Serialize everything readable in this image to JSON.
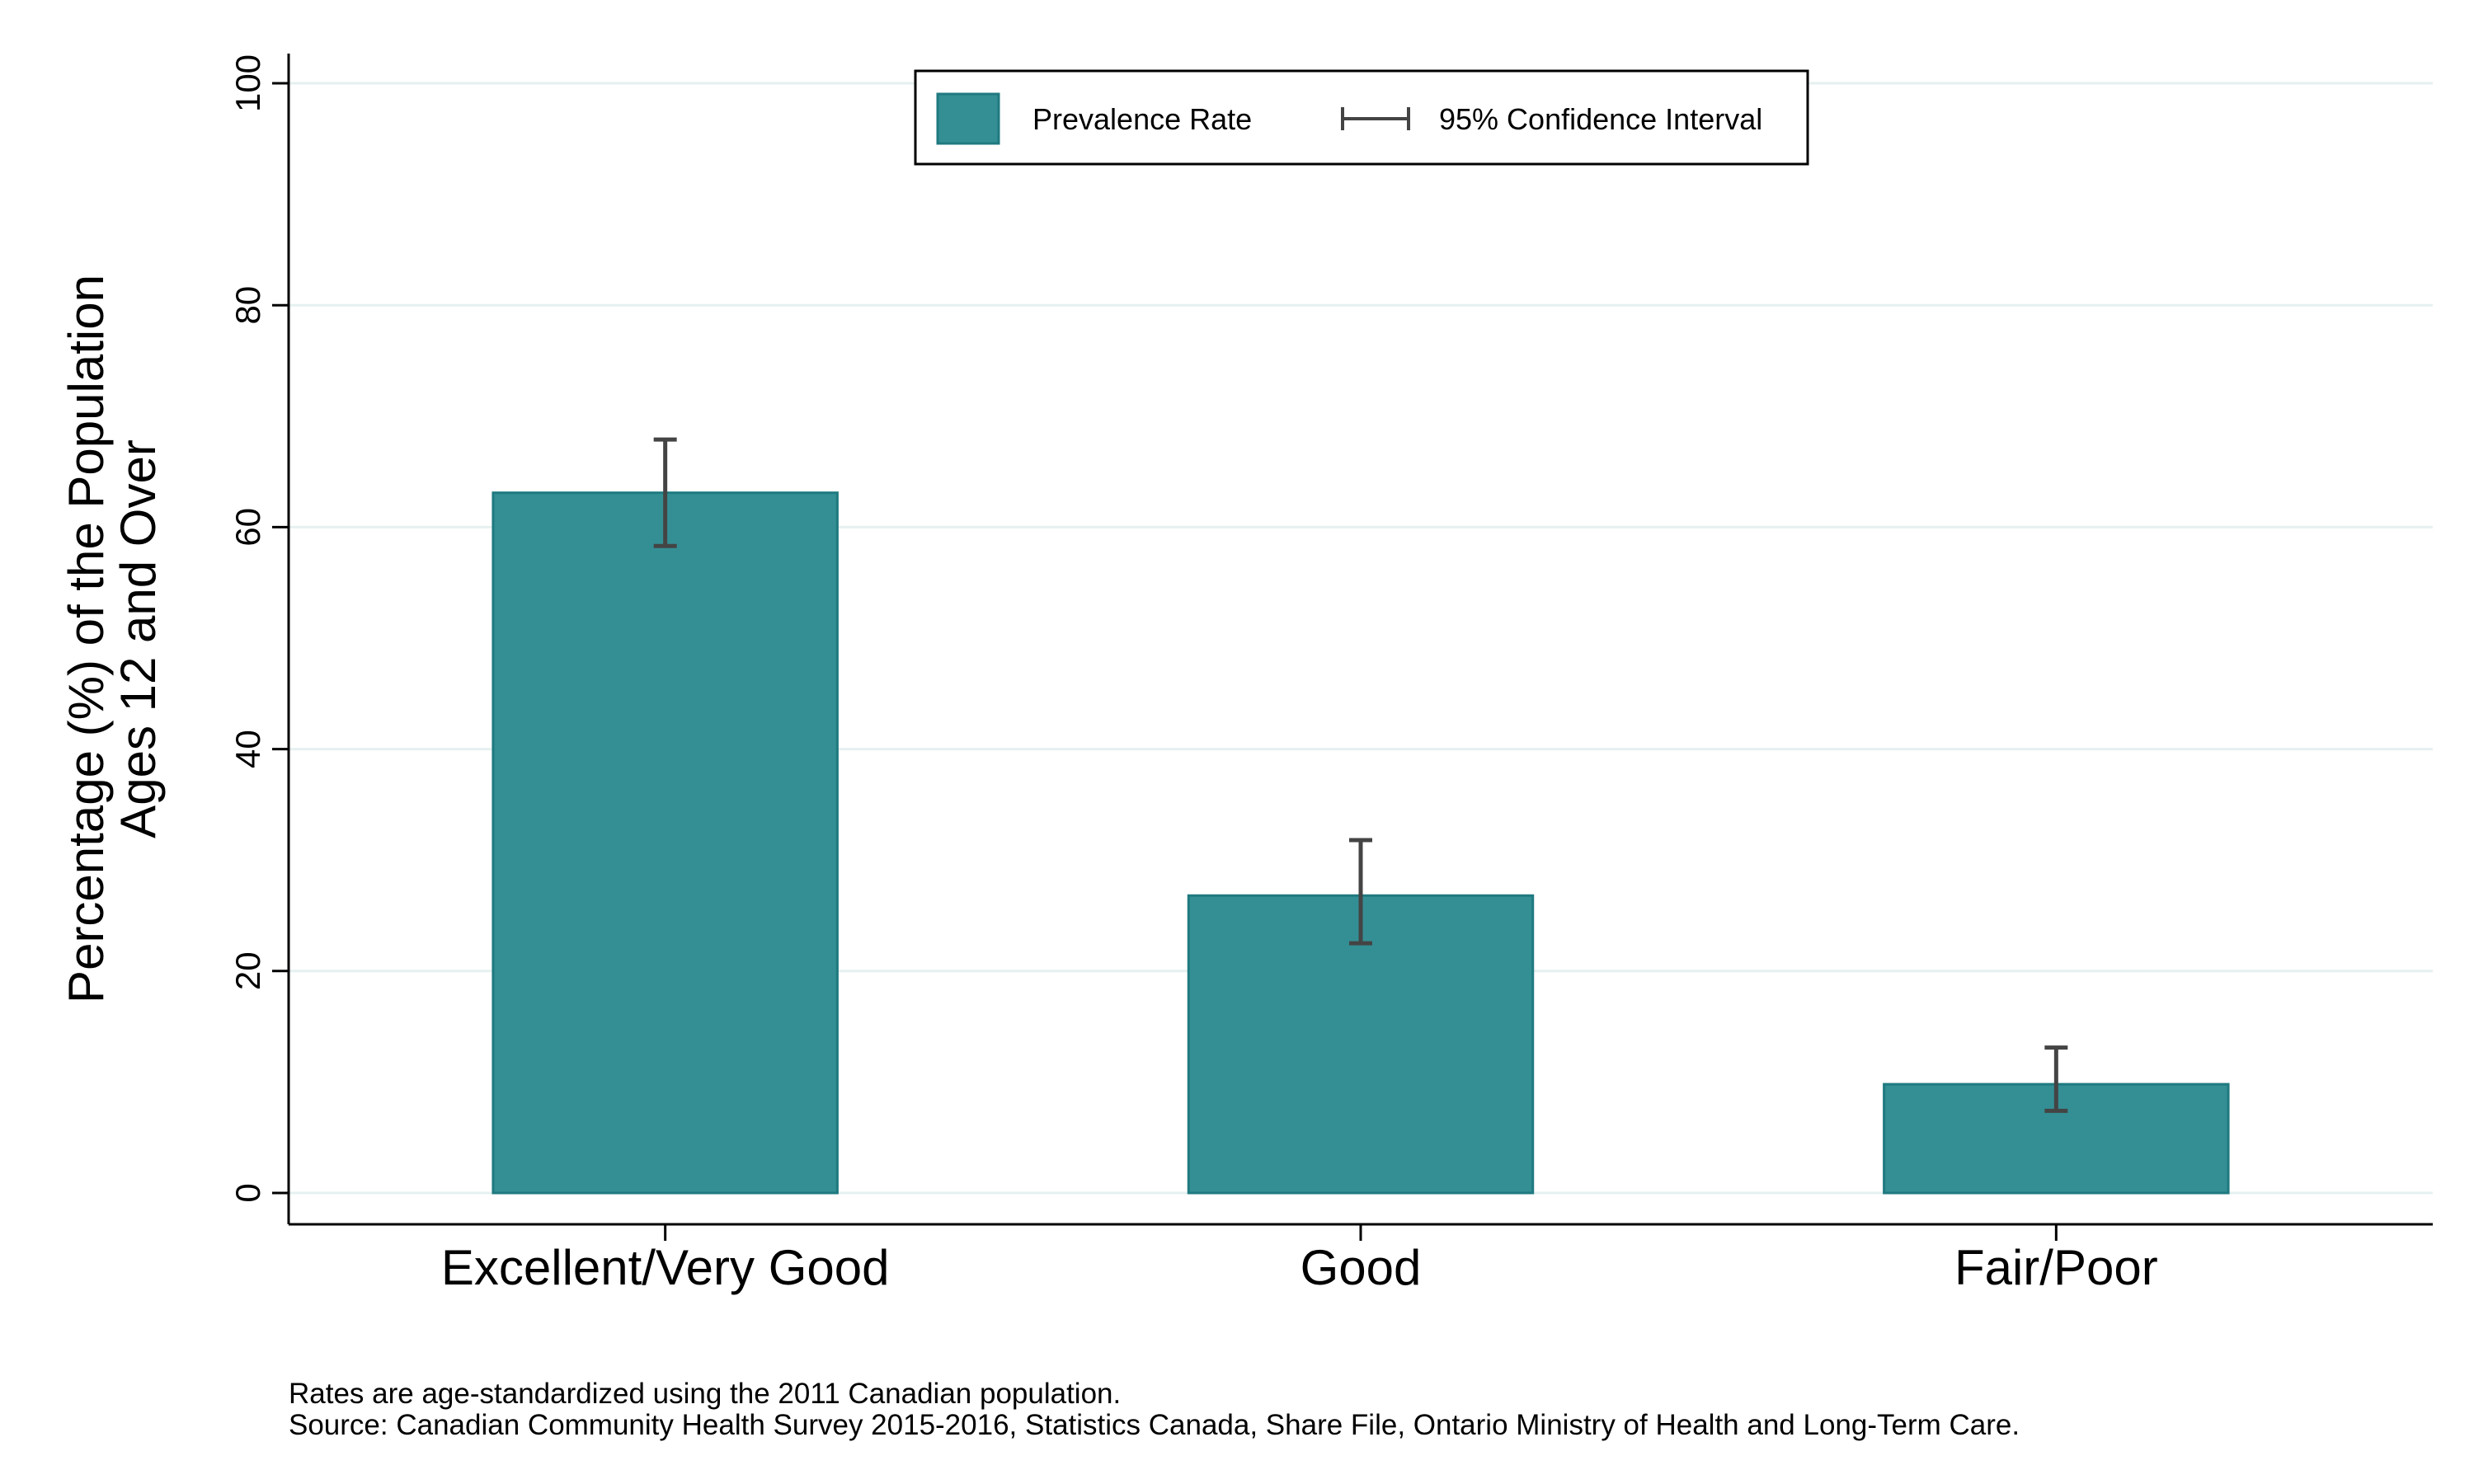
{
  "chart_data": {
    "type": "bar",
    "categories": [
      "Excellent/Very Good",
      "Good",
      "Fair/Poor"
    ],
    "series": [
      {
        "name": "Prevalence Rate",
        "values": [
          63.1,
          26.8,
          9.8
        ],
        "ci_lower": [
          58.3,
          22.5,
          7.4
        ],
        "ci_upper": [
          67.9,
          31.8,
          13.1
        ]
      }
    ],
    "ylabel_line1": "Percentage (%) of the Population",
    "ylabel_line2": "Ages 12 and Over",
    "xlabel": "",
    "ylim": [
      0,
      100
    ],
    "yticks": [
      0,
      20,
      40,
      60,
      80,
      100
    ],
    "ytick_labels": [
      "0",
      "20",
      "40",
      "60",
      "80",
      "100"
    ],
    "grid": true,
    "legend": {
      "placement": "top-center",
      "bar_label": "Prevalence Rate",
      "ci_label": "95% Confidence Interval"
    },
    "colors": {
      "bar_fill": "#348F95",
      "bar_stroke": "#1F7A80",
      "error_bar": "#444444",
      "grid": "#E6F0F0"
    },
    "notes": [
      "Rates are age-standardized using the 2011 Canadian population.",
      "Source: Canadian Community Health Survey 2015-2016, Statistics Canada, Share File, Ontario Ministry of Health and Long-Term Care."
    ]
  }
}
